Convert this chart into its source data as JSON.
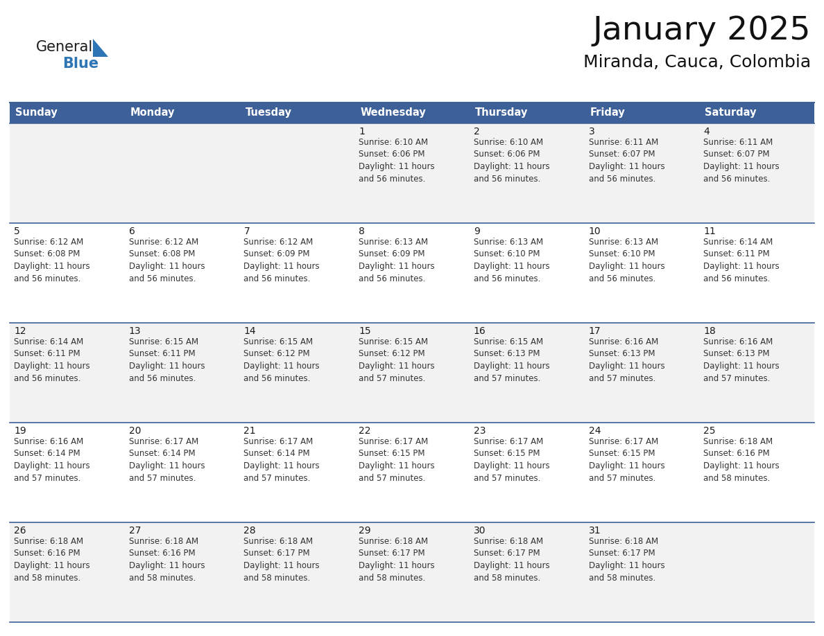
{
  "title": "January 2025",
  "subtitle": "Miranda, Cauca, Colombia",
  "header_color": "#3D6099",
  "header_text_color": "#FFFFFF",
  "header_font_size": 10.5,
  "day_names": [
    "Sunday",
    "Monday",
    "Tuesday",
    "Wednesday",
    "Thursday",
    "Friday",
    "Saturday"
  ],
  "title_font_size": 34,
  "subtitle_font_size": 18,
  "background_color": "#FFFFFF",
  "row_line_color": "#3D6099",
  "date_font_size": 10,
  "info_font_size": 8.5,
  "logo_general_color": "#1a1a1a",
  "logo_blue_color": "#2E75B6",
  "triangle_color": "#2E75B6",
  "cell_bg_even": "#F2F2F2",
  "cell_bg_odd": "#FFFFFF",
  "weeks": [
    [
      null,
      null,
      null,
      {
        "day": 1,
        "sunrise": "6:10 AM",
        "sunset": "6:06 PM",
        "hours": "11 hours",
        "mins": "56 minutes."
      },
      {
        "day": 2,
        "sunrise": "6:10 AM",
        "sunset": "6:06 PM",
        "hours": "11 hours",
        "mins": "56 minutes."
      },
      {
        "day": 3,
        "sunrise": "6:11 AM",
        "sunset": "6:07 PM",
        "hours": "11 hours",
        "mins": "56 minutes."
      },
      {
        "day": 4,
        "sunrise": "6:11 AM",
        "sunset": "6:07 PM",
        "hours": "11 hours",
        "mins": "56 minutes."
      }
    ],
    [
      {
        "day": 5,
        "sunrise": "6:12 AM",
        "sunset": "6:08 PM",
        "hours": "11 hours",
        "mins": "56 minutes."
      },
      {
        "day": 6,
        "sunrise": "6:12 AM",
        "sunset": "6:08 PM",
        "hours": "11 hours",
        "mins": "56 minutes."
      },
      {
        "day": 7,
        "sunrise": "6:12 AM",
        "sunset": "6:09 PM",
        "hours": "11 hours",
        "mins": "56 minutes."
      },
      {
        "day": 8,
        "sunrise": "6:13 AM",
        "sunset": "6:09 PM",
        "hours": "11 hours",
        "mins": "56 minutes."
      },
      {
        "day": 9,
        "sunrise": "6:13 AM",
        "sunset": "6:10 PM",
        "hours": "11 hours",
        "mins": "56 minutes."
      },
      {
        "day": 10,
        "sunrise": "6:13 AM",
        "sunset": "6:10 PM",
        "hours": "11 hours",
        "mins": "56 minutes."
      },
      {
        "day": 11,
        "sunrise": "6:14 AM",
        "sunset": "6:11 PM",
        "hours": "11 hours",
        "mins": "56 minutes."
      }
    ],
    [
      {
        "day": 12,
        "sunrise": "6:14 AM",
        "sunset": "6:11 PM",
        "hours": "11 hours",
        "mins": "56 minutes."
      },
      {
        "day": 13,
        "sunrise": "6:15 AM",
        "sunset": "6:11 PM",
        "hours": "11 hours",
        "mins": "56 minutes."
      },
      {
        "day": 14,
        "sunrise": "6:15 AM",
        "sunset": "6:12 PM",
        "hours": "11 hours",
        "mins": "56 minutes."
      },
      {
        "day": 15,
        "sunrise": "6:15 AM",
        "sunset": "6:12 PM",
        "hours": "11 hours",
        "mins": "57 minutes."
      },
      {
        "day": 16,
        "sunrise": "6:15 AM",
        "sunset": "6:13 PM",
        "hours": "11 hours",
        "mins": "57 minutes."
      },
      {
        "day": 17,
        "sunrise": "6:16 AM",
        "sunset": "6:13 PM",
        "hours": "11 hours",
        "mins": "57 minutes."
      },
      {
        "day": 18,
        "sunrise": "6:16 AM",
        "sunset": "6:13 PM",
        "hours": "11 hours",
        "mins": "57 minutes."
      }
    ],
    [
      {
        "day": 19,
        "sunrise": "6:16 AM",
        "sunset": "6:14 PM",
        "hours": "11 hours",
        "mins": "57 minutes."
      },
      {
        "day": 20,
        "sunrise": "6:17 AM",
        "sunset": "6:14 PM",
        "hours": "11 hours",
        "mins": "57 minutes."
      },
      {
        "day": 21,
        "sunrise": "6:17 AM",
        "sunset": "6:14 PM",
        "hours": "11 hours",
        "mins": "57 minutes."
      },
      {
        "day": 22,
        "sunrise": "6:17 AM",
        "sunset": "6:15 PM",
        "hours": "11 hours",
        "mins": "57 minutes."
      },
      {
        "day": 23,
        "sunrise": "6:17 AM",
        "sunset": "6:15 PM",
        "hours": "11 hours",
        "mins": "57 minutes."
      },
      {
        "day": 24,
        "sunrise": "6:17 AM",
        "sunset": "6:15 PM",
        "hours": "11 hours",
        "mins": "57 minutes."
      },
      {
        "day": 25,
        "sunrise": "6:18 AM",
        "sunset": "6:16 PM",
        "hours": "11 hours",
        "mins": "58 minutes."
      }
    ],
    [
      {
        "day": 26,
        "sunrise": "6:18 AM",
        "sunset": "6:16 PM",
        "hours": "11 hours",
        "mins": "58 minutes."
      },
      {
        "day": 27,
        "sunrise": "6:18 AM",
        "sunset": "6:16 PM",
        "hours": "11 hours",
        "mins": "58 minutes."
      },
      {
        "day": 28,
        "sunrise": "6:18 AM",
        "sunset": "6:17 PM",
        "hours": "11 hours",
        "mins": "58 minutes."
      },
      {
        "day": 29,
        "sunrise": "6:18 AM",
        "sunset": "6:17 PM",
        "hours": "11 hours",
        "mins": "58 minutes."
      },
      {
        "day": 30,
        "sunrise": "6:18 AM",
        "sunset": "6:17 PM",
        "hours": "11 hours",
        "mins": "58 minutes."
      },
      {
        "day": 31,
        "sunrise": "6:18 AM",
        "sunset": "6:17 PM",
        "hours": "11 hours",
        "mins": "58 minutes."
      },
      null
    ]
  ]
}
